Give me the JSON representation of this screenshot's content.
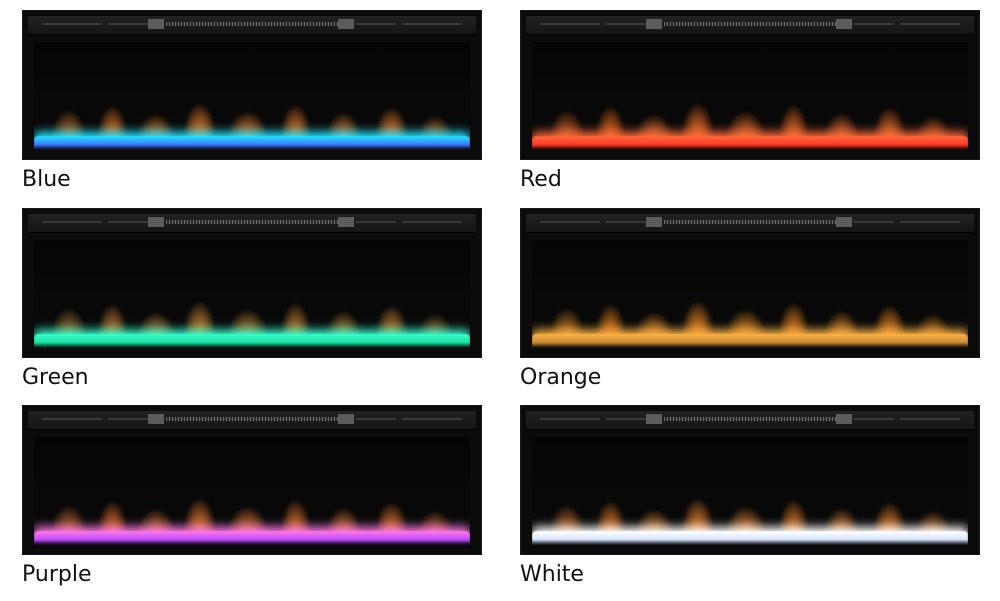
{
  "tiles": [
    {
      "label": "Blue",
      "bed_color": "#3f7bff",
      "bed_glow": "#23e6ff",
      "flame_tint": "#ff8a3a"
    },
    {
      "label": "Red",
      "bed_color": "#ff3b2a",
      "bed_glow": "#ff6a3a",
      "flame_tint": "#ff5a2a"
    },
    {
      "label": "Green",
      "bed_color": "#1fe3a0",
      "bed_glow": "#39ffd0",
      "flame_tint": "#b0a050"
    },
    {
      "label": "Orange",
      "bed_color": "#c98a3a",
      "bed_glow": "#ffb347",
      "flame_tint": "#ffa31a"
    },
    {
      "label": "Purple",
      "bed_color": "#c04dff",
      "bed_glow": "#ff7ae6",
      "flame_tint": "#ff7a3a"
    },
    {
      "label": "White",
      "bed_color": "#d9e6ff",
      "bed_glow": "#ffffff",
      "flame_tint": "#ff8f3a"
    }
  ]
}
